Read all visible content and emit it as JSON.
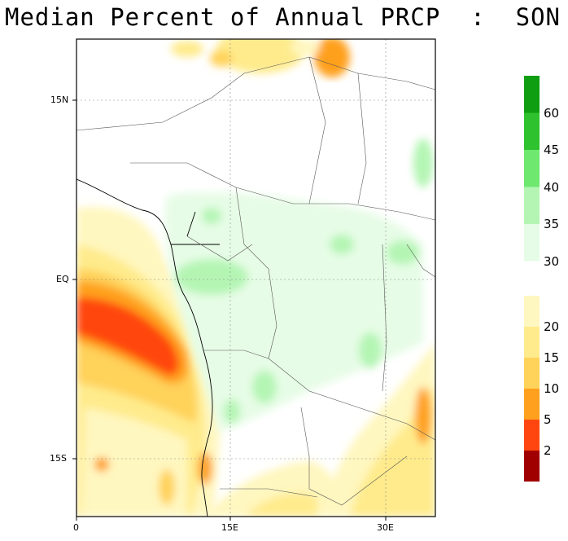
{
  "title": "Median Percent of Annual PRCP  :  SON",
  "map": {
    "lat_ticks": [
      "15N",
      "EQ",
      "15S"
    ],
    "lon_ticks": [
      "0",
      "15E",
      "30E"
    ]
  },
  "colorbar": {
    "labels": [
      "60",
      "45",
      "40",
      "35",
      "30",
      "20",
      "15",
      "10",
      "5",
      "2"
    ],
    "wet_colors": [
      "#0f9e12",
      "#2fc22f",
      "#6ee86e",
      "#b4f5b4",
      "#e6fce6"
    ],
    "dry_colors": [
      "#fff7c0",
      "#ffeb8c",
      "#ffd25a",
      "#ffa01e",
      "#ff4610",
      "#a00000"
    ]
  }
}
